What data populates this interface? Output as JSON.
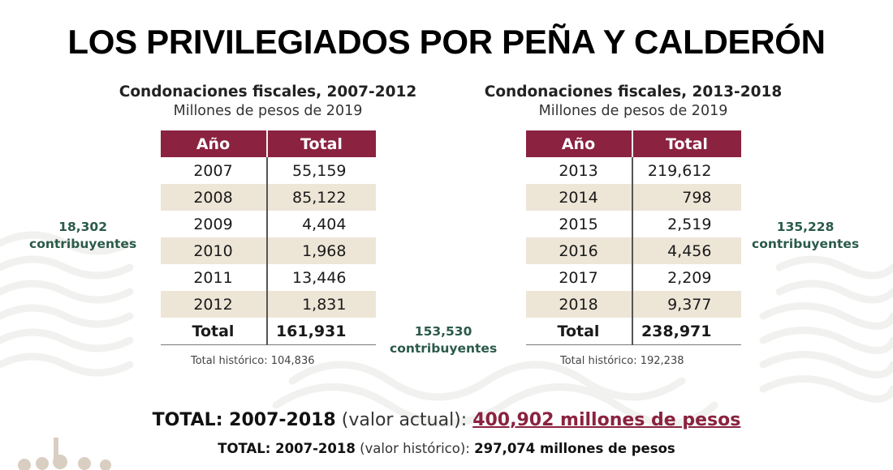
{
  "headline": "LOS PRIVILEGIADOS POR PEÑA Y CALDERÓN",
  "left_table": {
    "title": "Condonaciones fiscales, 2007-2012",
    "subtitle": "Millones de pesos de 2019",
    "headers": [
      "Año",
      "Total"
    ],
    "rows": [
      {
        "year": "2007",
        "total": "55,159"
      },
      {
        "year": "2008",
        "total": "85,122"
      },
      {
        "year": "2009",
        "total": "4,404"
      },
      {
        "year": "2010",
        "total": "1,968"
      },
      {
        "year": "2011",
        "total": "13,446"
      },
      {
        "year": "2012",
        "total": "1,831"
      }
    ],
    "total_label": "Total",
    "total_value": "161,931",
    "historic": "Total histórico: 104,836",
    "contributors_count": "18,302",
    "contributors_label": "contribuyentes"
  },
  "right_table": {
    "title": "Condonaciones fiscales, 2013-2018",
    "subtitle": "Millones de pesos de 2019",
    "headers": [
      "Año",
      "Total"
    ],
    "rows": [
      {
        "year": "2013",
        "total": "219,612"
      },
      {
        "year": "2014",
        "total": "798"
      },
      {
        "year": "2015",
        "total": "2,519"
      },
      {
        "year": "2016",
        "total": "4,456"
      },
      {
        "year": "2017",
        "total": "2,209"
      },
      {
        "year": "2018",
        "total": "9,377"
      }
    ],
    "total_label": "Total",
    "total_value": "238,971",
    "historic": "Total histórico: 192,238",
    "contributors_count": "135,228",
    "contributors_label": "contribuyentes"
  },
  "middle_contributors": {
    "count": "153,530",
    "label": "contribuyentes"
  },
  "summary": {
    "line1_label": "TOTAL: 2007-2018",
    "line1_qualifier": "(valor actual):",
    "line1_amount": "400,902 millones de pesos",
    "line2_label": "TOTAL: 2007-2018",
    "line2_qualifier": "(valor histórico):",
    "line2_amount": "297,074 millones de pesos"
  },
  "colors": {
    "header_bg": "#8a2240",
    "row_shade": "#ede5d6",
    "contributors_text": "#2b5a49",
    "highlight_amount": "#8a2240"
  }
}
